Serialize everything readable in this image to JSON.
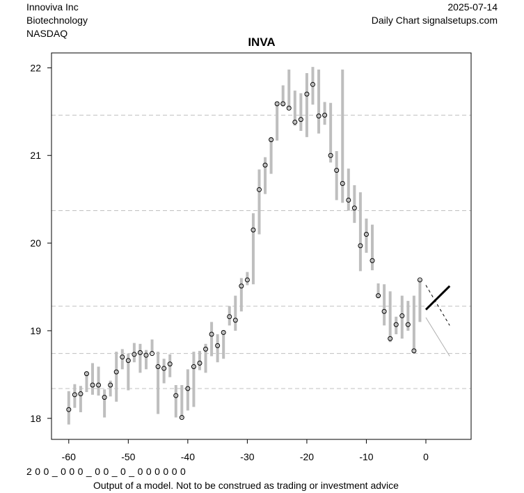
{
  "header": {
    "company": "Innoviva Inc",
    "sector": "Biotechnology",
    "exchange": "NASDAQ",
    "date": "2025-07-14",
    "source": "Daily Chart signalsetups.com"
  },
  "footer": {
    "code_row": "2 0 0 _ 0 0 0 _ 0 0 _ 0 _ 0 0 0 0 0 0",
    "disclaimer": "Output of a model. Not to be construed as trading or investment advice"
  },
  "chart_data": {
    "type": "ohlc-range",
    "title": "INVA",
    "xlabel": "",
    "ylabel": "",
    "xlim": [
      -62.9,
      7.6
    ],
    "ylim": [
      17.76,
      22.17
    ],
    "xticks": [
      -60,
      -50,
      -40,
      -30,
      -20,
      -10,
      0
    ],
    "yticks": [
      18,
      19,
      20,
      21,
      22
    ],
    "hlines": [
      21.46,
      20.37,
      19.28,
      18.74,
      18.34
    ],
    "colors": {
      "bar": "#bebebe",
      "grid": "#c0c0c0",
      "forecast": "#000000",
      "lower": "#b0b0b0"
    },
    "x": [
      -60,
      -59,
      -58,
      -57,
      -56,
      -55,
      -54,
      -53,
      -52,
      -51,
      -50,
      -49,
      -48,
      -47,
      -46,
      -45,
      -44,
      -43,
      -42,
      -41,
      -40,
      -39,
      -38,
      -37,
      -36,
      -35,
      -34,
      -33,
      -32,
      -31,
      -30,
      -29,
      -28,
      -27,
      -26,
      -25,
      -24,
      -23,
      -22,
      -21,
      -20,
      -19,
      -18,
      -17,
      -16,
      -15,
      -14,
      -13,
      -12,
      -11,
      -10,
      -9,
      -8,
      -7,
      -6,
      -5,
      -4,
      -3,
      -2,
      -1
    ],
    "close": [
      18.1,
      18.27,
      18.28,
      18.51,
      18.38,
      18.38,
      18.24,
      18.38,
      18.53,
      18.7,
      18.66,
      18.73,
      18.75,
      18.72,
      18.74,
      18.59,
      18.57,
      18.62,
      18.26,
      18.01,
      18.34,
      18.59,
      18.63,
      18.79,
      18.96,
      18.83,
      18.98,
      19.16,
      19.12,
      19.51,
      19.58,
      20.15,
      20.61,
      20.89,
      21.18,
      21.59,
      21.59,
      21.54,
      21.38,
      21.41,
      21.7,
      21.81,
      21.45,
      21.46,
      21.0,
      20.83,
      20.68,
      20.49,
      20.4,
      19.97,
      20.1,
      19.8,
      19.4,
      19.22,
      18.91,
      19.07,
      19.17,
      19.07,
      18.77,
      19.58
    ],
    "high": [
      18.31,
      18.39,
      18.37,
      18.53,
      18.63,
      18.59,
      18.33,
      18.43,
      18.76,
      18.79,
      18.74,
      18.86,
      18.85,
      18.78,
      18.9,
      18.76,
      18.68,
      18.73,
      18.38,
      18.38,
      18.56,
      18.76,
      18.77,
      18.85,
      19.1,
      18.96,
      19.0,
      19.28,
      19.4,
      19.6,
      19.67,
      20.34,
      20.84,
      20.98,
      21.21,
      21.61,
      21.8,
      21.98,
      21.74,
      21.71,
      21.94,
      22.01,
      21.98,
      21.61,
      21.6,
      21.05,
      21.98,
      20.85,
      20.66,
      20.58,
      20.28,
      20.21,
      19.54,
      19.53,
      19.45,
      19.16,
      19.4,
      19.34,
      19.4,
      19.59
    ],
    "low": [
      17.93,
      18.12,
      18.07,
      18.3,
      18.27,
      18.26,
      18.01,
      18.25,
      18.19,
      18.56,
      18.32,
      18.64,
      18.52,
      18.56,
      18.75,
      18.05,
      18.4,
      18.47,
      18.01,
      18.0,
      18.09,
      18.13,
      18.55,
      18.52,
      18.71,
      18.64,
      18.68,
      19.06,
      19.0,
      19.22,
      19.52,
      19.53,
      20.1,
      20.56,
      20.79,
      21.17,
      21.56,
      21.53,
      21.34,
      21.28,
      21.21,
      21.58,
      21.25,
      21.35,
      20.92,
      20.49,
      20.46,
      20.37,
      20.23,
      19.68,
      19.89,
      19.69,
      19.37,
      19.06,
      18.87,
      18.96,
      18.91,
      19.0,
      18.75,
      19.1
    ],
    "forecast": {
      "mid": {
        "x": [
          0,
          4
        ],
        "y": [
          19.24,
          19.51
        ]
      },
      "upper": {
        "x": [
          0,
          4
        ],
        "y": [
          19.52,
          19.06
        ]
      },
      "lower": {
        "x": [
          0,
          4
        ],
        "y": [
          19.15,
          18.71
        ]
      }
    }
  }
}
